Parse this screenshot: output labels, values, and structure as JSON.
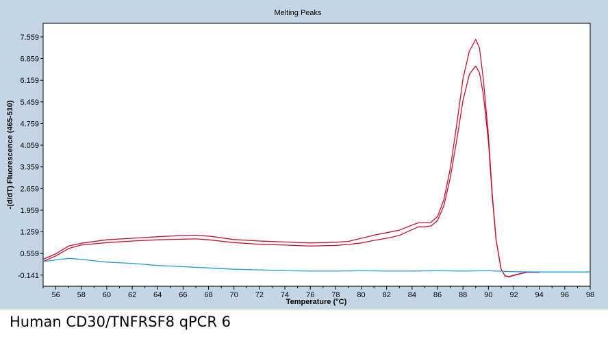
{
  "caption": "Human CD30/TNFRSF8 qPCR 6",
  "chart_data": {
    "type": "line",
    "title": "Melting Peaks",
    "xlabel": "Temperature (°C)",
    "ylabel": "-(d/dT) Fluorescence (465-510)",
    "xlim": [
      55,
      98
    ],
    "ylim": [
      -0.5,
      8.0
    ],
    "xticks": [
      56,
      58,
      60,
      62,
      64,
      66,
      68,
      70,
      72,
      74,
      76,
      78,
      80,
      82,
      84,
      86,
      88,
      90,
      92,
      94,
      96,
      98
    ],
    "yticks": [
      -0.141,
      0.559,
      1.259,
      1.959,
      2.659,
      3.359,
      4.059,
      4.759,
      5.459,
      6.159,
      6.859,
      7.559
    ],
    "grid": false,
    "series": [
      {
        "color": "#c8102e",
        "x": [
          55,
          56,
          57,
          58,
          60,
          62,
          64,
          66,
          67,
          68,
          70,
          72,
          74,
          76,
          78,
          79,
          80,
          81,
          82,
          83,
          84,
          84.5,
          85,
          85.5,
          86,
          86.5,
          87,
          87.5,
          88,
          88.5,
          89,
          89.3,
          89.6,
          90,
          90.3,
          90.6,
          91,
          91.3,
          91.6,
          92,
          92.5,
          93,
          94
        ],
        "y": [
          0.37,
          0.55,
          0.8,
          0.89,
          1.0,
          1.05,
          1.1,
          1.14,
          1.15,
          1.12,
          1.01,
          0.96,
          0.93,
          0.9,
          0.92,
          0.95,
          1.05,
          1.15,
          1.23,
          1.31,
          1.48,
          1.55,
          1.55,
          1.57,
          1.75,
          2.3,
          3.3,
          4.7,
          6.2,
          7.1,
          7.48,
          7.2,
          6.2,
          4.4,
          2.5,
          1.0,
          0.05,
          -0.17,
          -0.2,
          -0.15,
          -0.1,
          -0.05,
          -0.05
        ]
      },
      {
        "color": "#c8102e",
        "x": [
          55,
          56,
          57,
          58,
          60,
          62,
          64,
          66,
          67,
          68,
          70,
          72,
          74,
          76,
          78,
          79,
          80,
          81,
          82,
          83,
          84,
          84.5,
          85,
          85.5,
          86,
          86.5,
          87,
          87.5,
          88,
          88.5,
          89,
          89.3,
          89.6,
          90,
          90.3,
          90.6,
          91,
          91.3,
          91.6,
          92,
          92.5,
          93,
          94
        ],
        "y": [
          0.3,
          0.48,
          0.72,
          0.83,
          0.91,
          0.96,
          1.0,
          1.02,
          1.03,
          1.0,
          0.91,
          0.86,
          0.83,
          0.8,
          0.82,
          0.85,
          0.9,
          0.98,
          1.05,
          1.14,
          1.33,
          1.42,
          1.42,
          1.45,
          1.62,
          2.1,
          3.0,
          4.2,
          5.5,
          6.35,
          6.62,
          6.4,
          5.7,
          4.2,
          2.4,
          1.0,
          0.05,
          -0.16,
          -0.19,
          -0.14,
          -0.09,
          -0.05,
          -0.05
        ]
      },
      {
        "color": "#1f9bd6",
        "x": [
          55,
          56,
          57,
          58,
          60,
          62,
          64,
          66,
          68,
          70,
          72,
          74,
          76,
          78,
          80,
          82,
          84,
          86,
          88,
          90,
          92,
          94,
          96,
          98
        ],
        "y": [
          0.3,
          0.35,
          0.4,
          0.37,
          0.28,
          0.24,
          0.17,
          0.13,
          0.09,
          0.05,
          0.03,
          0.0,
          -0.01,
          -0.01,
          0.0,
          -0.01,
          -0.01,
          0.0,
          -0.01,
          0.0,
          -0.03,
          -0.04,
          -0.04,
          -0.04
        ]
      }
    ]
  }
}
